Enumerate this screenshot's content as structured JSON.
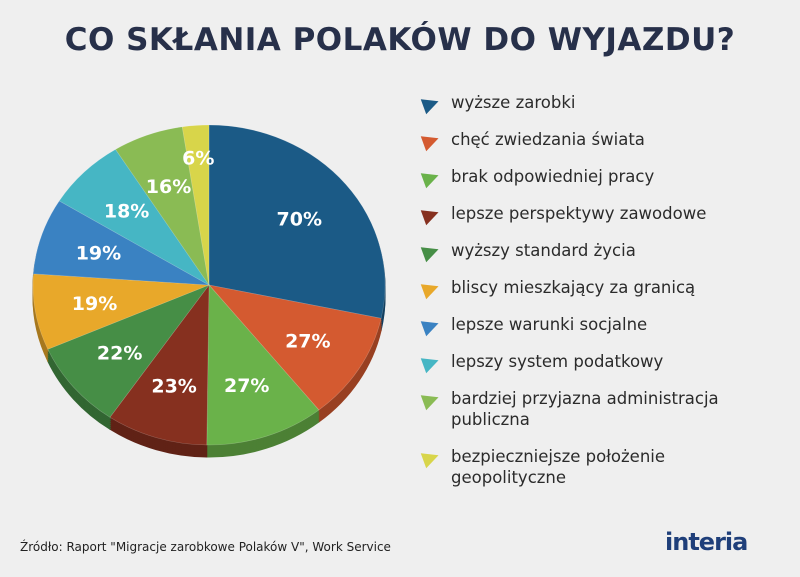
{
  "chart_data": {
    "type": "pie",
    "title": "CO SKŁANIA POLAKÓW DO WYJAZDU?",
    "categories": [
      "wyższe zarobki",
      "chęć zwiedzania świata",
      "brak odpowiedniej pracy",
      "lepsze perspektywy zawodowe",
      "wyższy standard życia",
      "bliscy mieszkający za granicą",
      "lepsze warunki socjalne",
      "lepszy system podatkowy",
      "bardziej przyjazna administracja publiczna",
      "bezpieczniejsze położenie geopolityczne"
    ],
    "values": [
      70,
      27,
      27,
      23,
      22,
      19,
      19,
      18,
      16,
      6
    ],
    "labels": [
      "70%",
      "27%",
      "27%",
      "23%",
      "22%",
      "19%",
      "19%",
      "18%",
      "16%",
      "6%"
    ],
    "colors": [
      "#1b5a86",
      "#d45a30",
      "#6ab24a",
      "#86301f",
      "#468e46",
      "#e8a82a",
      "#3a82c2",
      "#46b6c4",
      "#8abb54",
      "#d8d54a"
    ],
    "legend_placement": "right"
  },
  "source": "Źródło: Raport \"Migracje zarobkowe Polaków V\", Work Service",
  "logo": "interia"
}
